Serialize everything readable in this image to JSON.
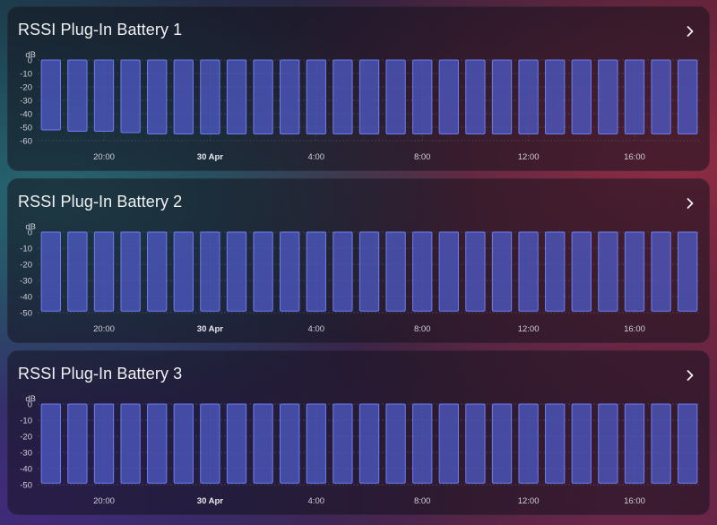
{
  "colors": {
    "bar_fill": "#4d59c2",
    "bar_stroke": "#6c7df0",
    "grid": "#4a4a5c",
    "text": "#f1f1f4"
  },
  "icons": {
    "card_chevron": "chevron-right-icon"
  },
  "cards": [
    {
      "title": "RSSI Plug-In Battery 1",
      "chart_data": {
        "type": "bar",
        "ylabel": "dB",
        "ylim": [
          -60,
          0
        ],
        "yticks": [
          "0",
          "-10",
          "-20",
          "-30",
          "-40",
          "-50",
          "-60"
        ],
        "xticks": [
          {
            "label": "20:00",
            "bold": false,
            "index": 2
          },
          {
            "label": "30 Apr",
            "bold": true,
            "index": 6
          },
          {
            "label": "4:00",
            "bold": false,
            "index": 10
          },
          {
            "label": "8:00",
            "bold": false,
            "index": 14
          },
          {
            "label": "12:00",
            "bold": false,
            "index": 18
          },
          {
            "label": "16:00",
            "bold": false,
            "index": 22
          }
        ],
        "values": [
          -52,
          -53,
          -53,
          -54,
          -55,
          -55,
          -55,
          -55,
          -55,
          -55,
          -55,
          -55,
          -55,
          -55,
          -55,
          -55,
          -55,
          -55,
          -55,
          -55,
          -55,
          -55,
          -55,
          -55,
          -55
        ]
      }
    },
    {
      "title": "RSSI Plug-In Battery 2",
      "chart_data": {
        "type": "bar",
        "ylabel": "dB",
        "ylim": [
          -50,
          0
        ],
        "yticks": [
          "0",
          "-10",
          "-20",
          "-30",
          "-40",
          "-50"
        ],
        "xticks": [
          {
            "label": "20:00",
            "bold": false,
            "index": 2
          },
          {
            "label": "30 Apr",
            "bold": true,
            "index": 6
          },
          {
            "label": "4:00",
            "bold": false,
            "index": 10
          },
          {
            "label": "8:00",
            "bold": false,
            "index": 14
          },
          {
            "label": "12:00",
            "bold": false,
            "index": 18
          },
          {
            "label": "16:00",
            "bold": false,
            "index": 22
          }
        ],
        "values": [
          -49,
          -49,
          -49,
          -49,
          -49,
          -49,
          -49,
          -49,
          -49,
          -49,
          -49,
          -49,
          -49,
          -49,
          -49,
          -49,
          -49,
          -49,
          -49,
          -49,
          -49,
          -49,
          -49,
          -49,
          -49
        ]
      }
    },
    {
      "title": "RSSI Plug-In Battery 3",
      "chart_data": {
        "type": "bar",
        "ylabel": "dB",
        "ylim": [
          -50,
          0
        ],
        "yticks": [
          "0",
          "-10",
          "-20",
          "-30",
          "-40",
          "-50"
        ],
        "xticks": [
          {
            "label": "20:00",
            "bold": false,
            "index": 2
          },
          {
            "label": "30 Apr",
            "bold": true,
            "index": 6
          },
          {
            "label": "4:00",
            "bold": false,
            "index": 10
          },
          {
            "label": "8:00",
            "bold": false,
            "index": 14
          },
          {
            "label": "12:00",
            "bold": false,
            "index": 18
          },
          {
            "label": "16:00",
            "bold": false,
            "index": 22
          }
        ],
        "values": [
          -49,
          -49,
          -49,
          -49,
          -49,
          -49,
          -49,
          -49,
          -49,
          -49,
          -49,
          -49,
          -49,
          -49,
          -49,
          -49,
          -49,
          -49,
          -49,
          -49,
          -49,
          -49,
          -49,
          -49,
          -49
        ]
      }
    }
  ]
}
